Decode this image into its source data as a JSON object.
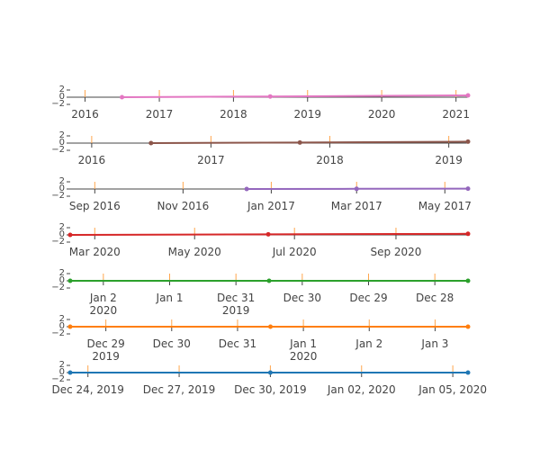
{
  "chart_data": [
    {
      "type": "line",
      "xlim": [
        "2015-10-20",
        "2021-03-01"
      ],
      "ylim": [
        -2,
        2
      ],
      "yticks": [
        {
          "value": -2,
          "label": "−2"
        },
        0,
        2
      ],
      "xticks": [
        {
          "value": "2016-01-01",
          "label": "2016"
        },
        {
          "value": "2017-01-01",
          "label": "2017"
        },
        {
          "value": "2018-01-01",
          "label": "2018"
        },
        {
          "value": "2019-01-01",
          "label": "2019"
        },
        {
          "value": "2020-01-01",
          "label": "2020"
        },
        {
          "value": "2021-01-01",
          "label": "2021"
        }
      ],
      "series": [
        {
          "color": "#e377c2",
          "x": [
            "2016-07-01",
            "2018-07-01",
            "2021-03-01"
          ],
          "values": [
            0,
            0.2,
            0.5
          ]
        }
      ]
    },
    {
      "type": "line",
      "xlim": [
        "2015-10-27",
        "2019-03-01"
      ],
      "ylim": [
        -2,
        2
      ],
      "yticks": [
        {
          "value": -2,
          "label": "−2"
        },
        0,
        2
      ],
      "xticks": [
        {
          "value": "2016-01-01",
          "label": "2016"
        },
        {
          "value": "2017-01-01",
          "label": "2017"
        },
        {
          "value": "2018-01-01",
          "label": "2018"
        },
        {
          "value": "2019-01-01",
          "label": "2019"
        }
      ],
      "series": [
        {
          "color": "#8c564b",
          "x": [
            "2016-07-01",
            "2017-10-01",
            "2019-03-01"
          ],
          "values": [
            0,
            0.15,
            0.4
          ]
        }
      ]
    },
    {
      "type": "line",
      "xlim": [
        "2016-08-15",
        "2017-05-17"
      ],
      "ylim": [
        -2,
        2
      ],
      "yticks": [
        {
          "value": -2,
          "label": "−2"
        },
        0,
        2
      ],
      "xticks": [
        {
          "value": "2016-09-01",
          "label": "Sep 2016"
        },
        {
          "value": "2016-11-01",
          "label": "Nov 2016"
        },
        {
          "value": "2017-01-01",
          "label": "Jan 2017"
        },
        {
          "value": "2017-03-01",
          "label": "Mar 2017"
        },
        {
          "value": "2017-05-01",
          "label": "May 2017"
        }
      ],
      "series": [
        {
          "color": "#9467bd",
          "x": [
            "2016-12-15",
            "2017-03-01",
            "2017-05-17"
          ],
          "values": [
            0,
            0.05,
            0.1
          ]
        }
      ]
    },
    {
      "type": "line",
      "xlim": [
        "2020-02-15",
        "2020-10-15"
      ],
      "ylim": [
        -2,
        2
      ],
      "yticks": [
        {
          "value": -2,
          "label": "−2"
        },
        0,
        2
      ],
      "xticks": [
        {
          "value": "2020-03-01",
          "label": "Mar 2020"
        },
        {
          "value": "2020-05-01",
          "label": "May 2020"
        },
        {
          "value": "2020-07-01",
          "label": "Jul 2020"
        },
        {
          "value": "2020-09-01",
          "label": "Sep 2020"
        }
      ],
      "series": [
        {
          "color": "#d62728",
          "x": [
            "2020-02-15",
            "2020-06-15",
            "2020-10-15"
          ],
          "values": [
            0,
            0.15,
            0.3
          ]
        }
      ]
    },
    {
      "type": "line",
      "xlim": [
        "2020-01-02T12:00",
        "2019-12-27T12:00"
      ],
      "ylim": [
        -2,
        2
      ],
      "yticks": [
        {
          "value": -2,
          "label": "−2"
        },
        0,
        2
      ],
      "xticks": [
        {
          "value": "2020-01-02",
          "label": "Jan 2\n2020"
        },
        {
          "value": "2020-01-01",
          "label": "Jan 1"
        },
        {
          "value": "2019-12-31",
          "label": "Dec 31\n2019"
        },
        {
          "value": "2019-12-30",
          "label": "Dec 30"
        },
        {
          "value": "2019-12-29",
          "label": "Dec 29"
        },
        {
          "value": "2019-12-28",
          "label": "Dec 28"
        }
      ],
      "series": [
        {
          "color": "#2ca02c",
          "x": [
            "2020-01-02T12:00",
            "2019-12-30T12:00",
            "2019-12-27T12:00"
          ],
          "values": [
            0,
            0,
            0
          ]
        }
      ]
    },
    {
      "type": "line",
      "xlim": [
        "2019-12-28T11:00",
        "2020-01-03T12:00"
      ],
      "ylim": [
        -2,
        2
      ],
      "yticks": [
        {
          "value": -2,
          "label": "−2"
        },
        0,
        2
      ],
      "xticks": [
        {
          "value": "2019-12-29",
          "label": "Dec 29\n2019"
        },
        {
          "value": "2019-12-30",
          "label": "Dec 30"
        },
        {
          "value": "2019-12-31",
          "label": "Dec 31"
        },
        {
          "value": "2020-01-01",
          "label": "Jan 1\n2020"
        },
        {
          "value": "2020-01-02",
          "label": "Jan 2"
        },
        {
          "value": "2020-01-03",
          "label": "Jan 3"
        }
      ],
      "series": [
        {
          "color": "#ff7f0e",
          "x": [
            "2019-12-28T11:00",
            "2019-12-31T12:00",
            "2020-01-03T12:00"
          ],
          "values": [
            0,
            0,
            0
          ]
        }
      ]
    },
    {
      "type": "line",
      "xlim": [
        "2019-12-23T10:00",
        "2020-01-05T12:00"
      ],
      "ylim": [
        -2,
        2
      ],
      "yticks": [
        {
          "value": -2,
          "label": "−2"
        },
        0,
        2
      ],
      "xticks": [
        {
          "value": "2019-12-24",
          "label": "Dec 24, 2019"
        },
        {
          "value": "2019-12-27",
          "label": "Dec 27, 2019"
        },
        {
          "value": "2019-12-30",
          "label": "Dec 30, 2019"
        },
        {
          "value": "2020-01-02",
          "label": "Jan 02, 2020"
        },
        {
          "value": "2020-01-05",
          "label": "Jan 05, 2020"
        }
      ],
      "series": [
        {
          "color": "#1f77b4",
          "x": [
            "2019-12-23T10:00",
            "2019-12-30T00:00",
            "2020-01-05T12:00"
          ],
          "values": [
            0,
            0,
            0
          ]
        }
      ]
    }
  ]
}
